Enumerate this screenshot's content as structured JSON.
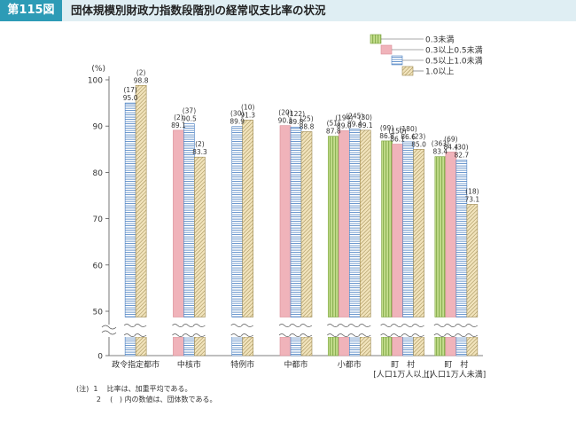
{
  "figure": {
    "label": "第115図",
    "title": "団体規模別財政力指数段階別の経常収支比率の状況"
  },
  "notes": [
    "(注)  1    比率は、加重平均である。",
    "         2    (   ) 内の数値は、団体数である。"
  ],
  "chart_data": {
    "type": "bar",
    "ylabel": "(%)",
    "ylim": [
      0,
      100
    ],
    "y_axis_break": true,
    "yticks": [
      "0",
      "50",
      "60",
      "70",
      "80",
      "90",
      "100"
    ],
    "categories": [
      [
        "政令指定都市"
      ],
      [
        "中核市"
      ],
      [
        "特例市"
      ],
      [
        "中都市"
      ],
      [
        "小都市"
      ],
      [
        "町　村",
        "[人口1万人以上]"
      ],
      [
        "町　村",
        "[人口1万人未満]"
      ]
    ],
    "legend_position": "top-right",
    "series": [
      {
        "name": "0.3未満",
        "color": "#c5de8e",
        "pattern": "vertical",
        "values": [
          null,
          null,
          null,
          null,
          87.8,
          86.8,
          83.4
        ],
        "counts": [
          null,
          null,
          null,
          null,
          "(51)",
          "(99)",
          "(363)"
        ]
      },
      {
        "name": "0.3以上0.5未満",
        "color": "#f0b3ba",
        "pattern": "solid",
        "values": [
          null,
          89.1,
          null,
          90.1,
          89.0,
          86.1,
          84.4
        ],
        "counts": [
          null,
          "(2)",
          null,
          "(20)",
          "(194)",
          "(150)",
          "(69)"
        ]
      },
      {
        "name": "0.5以上1.0未満",
        "color": "#a8c5e6",
        "pattern": "horizontal",
        "values": [
          95.0,
          90.5,
          89.9,
          89.8,
          89.4,
          86.6,
          82.7
        ],
        "counts": [
          "(17)",
          "(37)",
          "(30)",
          "(122)",
          "(245)",
          "(180)",
          "(30)"
        ]
      },
      {
        "name": "1.0以上",
        "color": "#e9d8aa",
        "pattern": "diagonal",
        "values": [
          98.8,
          83.3,
          91.3,
          88.8,
          89.1,
          85.0,
          73.1
        ],
        "counts": [
          "(2)",
          "(2)",
          "(10)",
          "(25)",
          "(30)",
          "(23)",
          "(18)"
        ]
      }
    ]
  }
}
